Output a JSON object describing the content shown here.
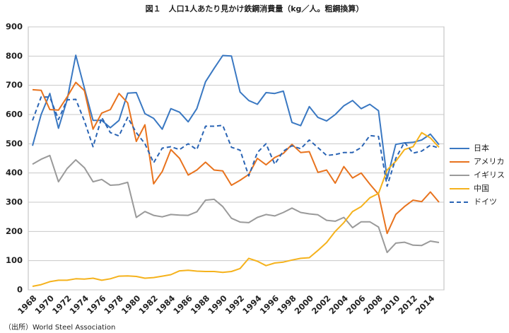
{
  "chart_data": {
    "type": "line",
    "title": "図１　人口1人あたり見かけ鉄鋼消費量（kg／人。粗鋼換算）",
    "source": "（出所）World Steel Association",
    "categories": [
      "1968",
      null,
      "1970",
      null,
      "1972",
      null,
      "1974",
      null,
      "1976",
      null,
      "1978",
      null,
      "1980",
      null,
      "1982",
      null,
      "1984",
      null,
      "1986",
      null,
      "1988",
      null,
      "1990",
      null,
      "1992",
      null,
      "1994",
      null,
      "1996",
      null,
      "1998",
      null,
      "2000",
      null,
      "2002",
      null,
      "2004",
      null,
      "2006",
      null,
      "2008",
      null,
      "2010",
      null,
      "2012",
      null,
      "2014",
      null
    ],
    "series": [
      {
        "name": "日本",
        "color": "#3a78c2",
        "dashed": false,
        "values": [
          493,
          600,
          672,
          553,
          650,
          803,
          690,
          580,
          580,
          555,
          580,
          673,
          675,
          603,
          587,
          550,
          620,
          608,
          575,
          620,
          712,
          758,
          802,
          800,
          677,
          648,
          635,
          675,
          672,
          680,
          573,
          562,
          627,
          590,
          578,
          600,
          630,
          648,
          620,
          635,
          613,
          380,
          498,
          503,
          505,
          513,
          533,
          497
        ]
      },
      {
        "name": "アメリカ",
        "color": "#e8731e",
        "dashed": false,
        "values": [
          685,
          683,
          617,
          615,
          660,
          710,
          682,
          550,
          605,
          617,
          672,
          640,
          508,
          565,
          363,
          405,
          480,
          450,
          393,
          410,
          437,
          410,
          407,
          358,
          375,
          395,
          450,
          428,
          453,
          467,
          498,
          470,
          473,
          402,
          410,
          365,
          422,
          383,
          400,
          362,
          327,
          193,
          258,
          285,
          307,
          302,
          335,
          300
        ]
      },
      {
        "name": "イギリス",
        "color": "#9a9a9a",
        "dashed": false,
        "values": [
          430,
          447,
          460,
          370,
          415,
          445,
          418,
          370,
          378,
          358,
          360,
          368,
          248,
          268,
          255,
          250,
          258,
          256,
          255,
          267,
          307,
          310,
          285,
          245,
          232,
          230,
          248,
          258,
          253,
          265,
          280,
          265,
          260,
          257,
          238,
          235,
          248,
          213,
          233,
          233,
          215,
          128,
          160,
          163,
          153,
          152,
          167,
          162
        ]
      },
      {
        "name": "中国",
        "color": "#f5b21c",
        "dashed": false,
        "values": [
          12,
          18,
          28,
          33,
          33,
          38,
          37,
          40,
          33,
          38,
          47,
          48,
          46,
          40,
          42,
          47,
          52,
          65,
          67,
          64,
          63,
          63,
          60,
          63,
          73,
          108,
          98,
          83,
          92,
          95,
          102,
          108,
          110,
          135,
          162,
          200,
          230,
          268,
          285,
          315,
          330,
          410,
          440,
          480,
          490,
          538,
          520,
          488
        ]
      },
      {
        "name": "ドイツ",
        "color": "#2a64b4",
        "dashed": true,
        "values": [
          580,
          660,
          660,
          583,
          650,
          652,
          578,
          490,
          590,
          538,
          527,
          590,
          538,
          500,
          435,
          485,
          490,
          480,
          500,
          480,
          560,
          560,
          563,
          488,
          478,
          390,
          470,
          500,
          430,
          475,
          493,
          483,
          513,
          487,
          460,
          463,
          470,
          470,
          487,
          528,
          525,
          355,
          450,
          505,
          468,
          475,
          495,
          485
        ]
      }
    ],
    "ylim": [
      0,
      900
    ],
    "yticks": [
      0,
      100,
      200,
      300,
      400,
      500,
      600,
      700,
      800,
      900
    ],
    "grid": true,
    "legend": "right"
  }
}
